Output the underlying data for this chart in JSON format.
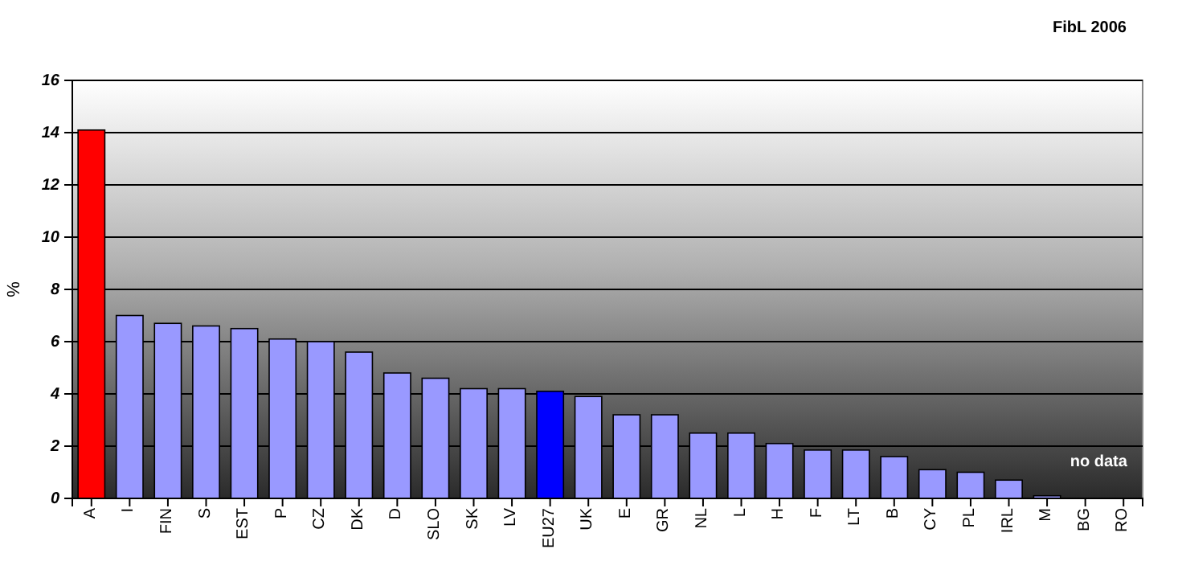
{
  "chart_data": {
    "type": "bar",
    "ylabel": "%",
    "categories": [
      "A",
      "I",
      "FIN",
      "S",
      "EST",
      "P",
      "CZ",
      "DK",
      "D",
      "SLO",
      "SK",
      "LV",
      "EU27",
      "UK",
      "E",
      "GR",
      "NL",
      "L",
      "H",
      "F",
      "LT",
      "B",
      "CY",
      "PL",
      "IRL",
      "M",
      "BG",
      "RO"
    ],
    "values": [
      14.1,
      7.0,
      6.7,
      6.6,
      6.5,
      6.1,
      6.0,
      5.6,
      4.8,
      4.6,
      4.2,
      4.2,
      4.1,
      3.9,
      3.2,
      3.2,
      2.5,
      2.5,
      2.1,
      1.85,
      1.85,
      1.6,
      1.1,
      1.0,
      0.7,
      0.1,
      null,
      null
    ],
    "colors": [
      "#ff0000",
      "#9999ff",
      "#9999ff",
      "#9999ff",
      "#9999ff",
      "#9999ff",
      "#9999ff",
      "#9999ff",
      "#9999ff",
      "#9999ff",
      "#9999ff",
      "#9999ff",
      "#0000ff",
      "#9999ff",
      "#9999ff",
      "#9999ff",
      "#9999ff",
      "#9999ff",
      "#9999ff",
      "#9999ff",
      "#9999ff",
      "#9999ff",
      "#9999ff",
      "#9999ff",
      "#9999ff",
      "#9999ff",
      null,
      null
    ],
    "ylim": [
      0,
      16
    ],
    "yticks": [
      0,
      2,
      4,
      6,
      8,
      10,
      12,
      14,
      16
    ],
    "grid": "y",
    "annotations": [
      "FibL 2006",
      "no data"
    ]
  }
}
